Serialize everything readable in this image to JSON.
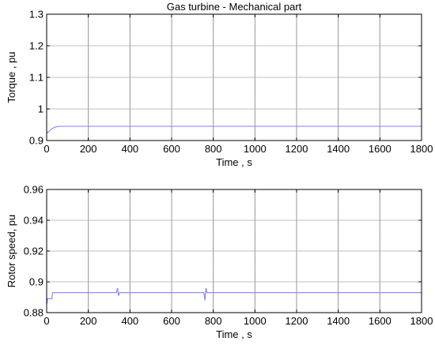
{
  "chart_data": [
    {
      "type": "line",
      "title": "Gas turbine - Mechanical part",
      "xlabel": "Time , s",
      "ylabel": "Torque , pu",
      "xlim": [
        0,
        1800
      ],
      "ylim": [
        0.9,
        1.3
      ],
      "xticks": [
        0,
        200,
        400,
        600,
        800,
        1000,
        1200,
        1400,
        1600,
        1800
      ],
      "yticks": [
        0.9,
        1.0,
        1.1,
        1.2,
        1.3
      ],
      "ytick_labels": [
        "0.9",
        "1",
        "1.1",
        "1.2",
        "1.3"
      ],
      "grid": true,
      "line_color": "#8080ff",
      "series": [
        {
          "x": [
            0,
            5,
            10,
            20,
            30,
            40,
            50,
            60,
            80,
            100,
            200,
            400,
            600,
            800,
            1000,
            1200,
            1400,
            1600,
            1800
          ],
          "values": [
            0.93,
            0.925,
            0.928,
            0.935,
            0.939,
            0.942,
            0.944,
            0.945,
            0.945,
            0.945,
            0.945,
            0.945,
            0.945,
            0.945,
            0.945,
            0.945,
            0.945,
            0.945,
            0.945
          ]
        }
      ]
    },
    {
      "type": "line",
      "title": "",
      "xlabel": "Time , s",
      "ylabel": "Rotor speed, pu",
      "xlim": [
        0,
        1800
      ],
      "ylim": [
        0.88,
        0.96
      ],
      "xticks": [
        0,
        200,
        400,
        600,
        800,
        1000,
        1200,
        1400,
        1600,
        1800
      ],
      "yticks": [
        0.88,
        0.9,
        0.92,
        0.94,
        0.96
      ],
      "ytick_labels": [
        "0.88",
        "0.9",
        "0.92",
        "0.94",
        "0.96"
      ],
      "grid": true,
      "line_color": "#8080ff",
      "series": [
        {
          "x": [
            0,
            2,
            4,
            10,
            15,
            20,
            25,
            28,
            30,
            35,
            40,
            100,
            200,
            335,
            340,
            345,
            350,
            400,
            600,
            755,
            760,
            765,
            770,
            800,
            1000,
            1200,
            1400,
            1600,
            1800
          ],
          "values": [
            0.89,
            0.886,
            0.889,
            0.889,
            0.889,
            0.889,
            0.889,
            0.893,
            0.893,
            0.893,
            0.893,
            0.893,
            0.893,
            0.893,
            0.896,
            0.891,
            0.893,
            0.893,
            0.893,
            0.893,
            0.888,
            0.896,
            0.893,
            0.893,
            0.893,
            0.893,
            0.893,
            0.893,
            0.893
          ]
        }
      ]
    }
  ]
}
